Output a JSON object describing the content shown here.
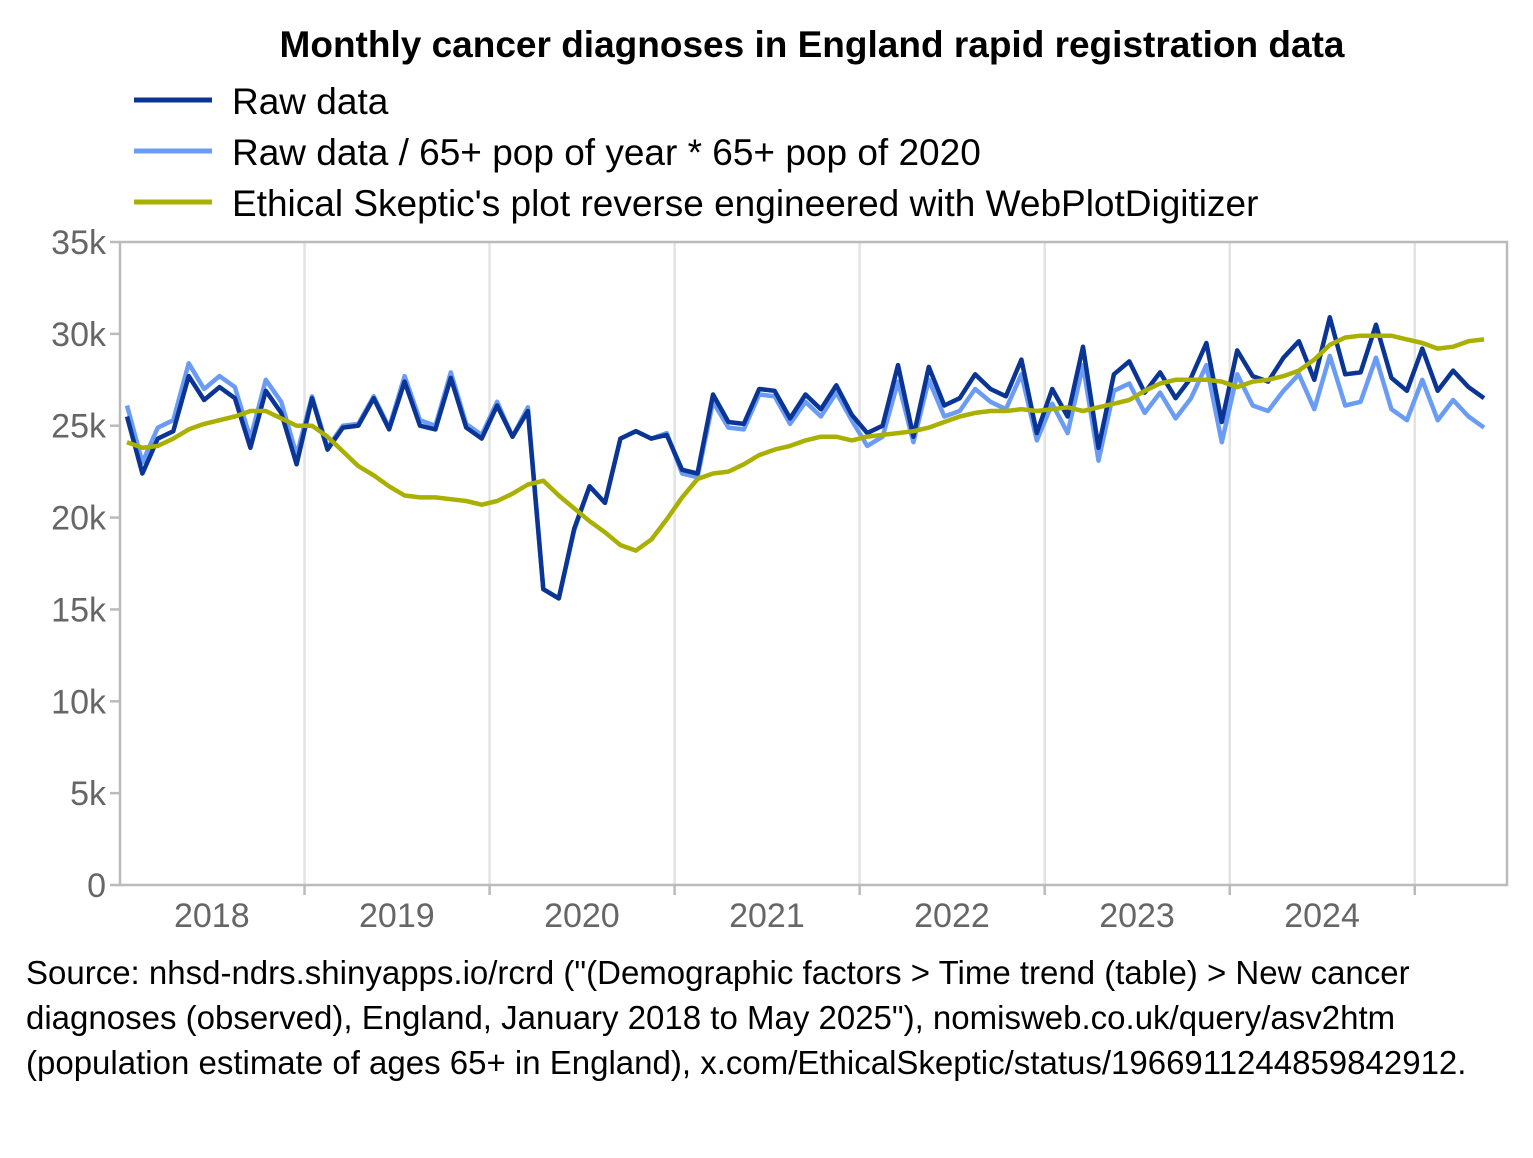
{
  "chart_data": {
    "type": "line",
    "title": "Monthly cancer diagnoses in England rapid registration data",
    "xlabel": "",
    "ylabel": "",
    "x_start": "2018-01",
    "x_end": "2025-05",
    "x_ticks": [
      "2018",
      "2019",
      "2020",
      "2021",
      "2022",
      "2023",
      "2024"
    ],
    "y_ticks": [
      "0",
      "5k",
      "10k",
      "15k",
      "20k",
      "25k",
      "30k",
      "35k"
    ],
    "ylim": [
      0,
      35000
    ],
    "grid": "vertical year lines",
    "legend_position": "top",
    "series": [
      {
        "name": "Raw data",
        "color": "#0a3595",
        "values": [
          25500,
          22400,
          24300,
          24700,
          27700,
          26400,
          27100,
          26500,
          23800,
          26900,
          25700,
          22900,
          26500,
          23700,
          24900,
          25000,
          26500,
          24800,
          27400,
          25000,
          24800,
          27600,
          24900,
          24300,
          26100,
          24400,
          25800,
          16100,
          15600,
          19400,
          21700,
          20800,
          24300,
          24700,
          24300,
          24500,
          22600,
          22400,
          26700,
          25200,
          25100,
          27000,
          26900,
          25400,
          26700,
          25900,
          27200,
          25600,
          24600,
          25000,
          28300,
          24400,
          28200,
          26100,
          26500,
          27800,
          27000,
          26600,
          28600,
          24600,
          27000,
          25500,
          29300,
          23800,
          27800,
          28500,
          26800,
          27900,
          26500,
          27600,
          29500,
          25200,
          29100,
          27700,
          27400,
          28700,
          29600,
          27500,
          30900,
          27800,
          27900,
          30500,
          27600,
          26900,
          29200,
          26900,
          28000,
          27100,
          26500
        ]
      },
      {
        "name": "Raw data / 65+ pop of year * 65+ pop of 2020",
        "color": "#6b9cf5",
        "values": [
          26100,
          23000,
          24900,
          25300,
          28400,
          27000,
          27700,
          27100,
          24300,
          27500,
          26300,
          23400,
          26600,
          23800,
          25000,
          25100,
          26600,
          24900,
          27700,
          25300,
          25000,
          27900,
          25100,
          24500,
          26300,
          24400,
          26000,
          16100,
          15600,
          19300,
          21700,
          20800,
          24300,
          24700,
          24300,
          24600,
          22400,
          22200,
          26300,
          24900,
          24800,
          26700,
          26600,
          25100,
          26300,
          25500,
          26800,
          25300,
          23900,
          24400,
          27400,
          24100,
          27500,
          25500,
          25800,
          27000,
          26300,
          25900,
          27800,
          24200,
          26200,
          24600,
          28300,
          23100,
          26900,
          27300,
          25700,
          26800,
          25400,
          26500,
          28300,
          24100,
          27800,
          26100,
          25800,
          26900,
          27800,
          25900,
          28800,
          26100,
          26300,
          28700,
          25900,
          25300,
          27500,
          25300,
          26400,
          25500,
          24900
        ]
      },
      {
        "name": "Ethical Skeptic's plot reverse engineered with WebPlotDigitizer",
        "color": "#aab000",
        "values": [
          24100,
          23800,
          23900,
          24300,
          24800,
          25100,
          25300,
          25500,
          25800,
          25800,
          25400,
          25000,
          25000,
          24400,
          23600,
          22800,
          22300,
          21700,
          21200,
          21100,
          21100,
          21000,
          20900,
          20700,
          20900,
          21300,
          21800,
          22000,
          21200,
          20500,
          19800,
          19200,
          18500,
          18200,
          18800,
          19900,
          21100,
          22100,
          22400,
          22500,
          22900,
          23400,
          23700,
          23900,
          24200,
          24400,
          24400,
          24200,
          24400,
          24500,
          24600,
          24700,
          24900,
          25200,
          25500,
          25700,
          25800,
          25800,
          25900,
          25800,
          25900,
          26000,
          25800,
          26000,
          26200,
          26400,
          26900,
          27300,
          27500,
          27500,
          27500,
          27400,
          27100,
          27400,
          27500,
          27700,
          28000,
          28600,
          29400,
          29800,
          29900,
          29900,
          29900,
          29700,
          29500,
          29200,
          29300,
          29600,
          29700
        ]
      }
    ]
  },
  "source_text": "Source: nhsd-ndrs.shinyapps.io/rcrd (\"(Demographic factors > Time trend (table) > New cancer diagnoses (observed), England, January 2018 to May 2025\"), nomisweb.co.uk/query/asv2htm (population estimate of ages 65+ in England), x.com/EthicalSkeptic/status/1966911244859842912."
}
